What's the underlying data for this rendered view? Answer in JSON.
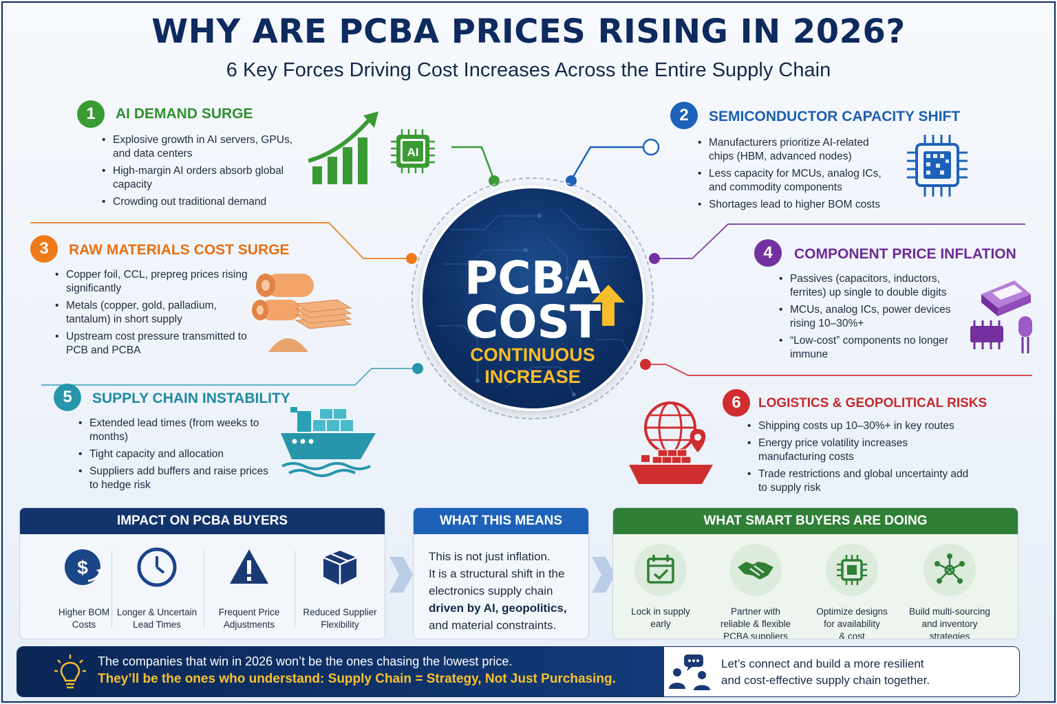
{
  "title": "WHY ARE PCBA PRICES RISING IN 2026?",
  "subtitle": "6 Key Forces Driving Cost Increases Across the Entire Supply Chain",
  "hub": {
    "line1": "PCBA",
    "line2": "COST",
    "line3": "CONTINUOUS",
    "line4": "INCREASE"
  },
  "forces": [
    {
      "num": "1",
      "heading": "AI DEMAND SURGE",
      "color": "#3a9b34",
      "bullets": [
        "Explosive growth in AI servers, GPUs, and data centers",
        "High-margin AI orders absorb global capacity",
        "Crowding out traditional demand"
      ]
    },
    {
      "num": "2",
      "heading": "SEMICONDUCTOR CAPACITY SHIFT",
      "color": "#1d62b8",
      "bullets": [
        "Manufacturers prioritize AI-related chips (HBM, advanced nodes)",
        "Less capacity for MCUs, analog ICs, and commodity components",
        "Shortages lead to higher BOM costs"
      ]
    },
    {
      "num": "3",
      "heading": "RAW MATERIALS COST SURGE",
      "color": "#ef7a1a",
      "bullets": [
        "Copper foil, CCL, prepreg prices rising significantly",
        "Metals (copper, gold, palladium, tantalum) in short supply",
        "Upstream cost pressure transmitted to PCB and PCBA"
      ]
    },
    {
      "num": "4",
      "heading": "COMPONENT PRICE INFLATION",
      "color": "#74309e",
      "bullets": [
        "Passives (capacitors, inductors, ferrites) up single to double digits",
        "MCUs, analog ICs, power devices rising 10–30%+",
        "“Low-cost” components no longer immune"
      ]
    },
    {
      "num": "5",
      "heading": "SUPPLY CHAIN INSTABILITY",
      "color": "#2795ab",
      "bullets": [
        "Extended lead times (from weeks to months)",
        "Tight capacity and allocation",
        "Suppliers add buffers and raise prices to hedge risk"
      ]
    },
    {
      "num": "6",
      "heading": "LOGISTICS & GEOPOLITICAL RISKS",
      "color": "#cf2d2f",
      "bullets": [
        "Shipping costs up 10–30%+ in key routes",
        "Energy price volatility increases manufacturing costs",
        "Trade restrictions and global uncertainty add to supply risk"
      ]
    }
  ],
  "icons": {
    "force1": "growth-chart-ai-chip-icon",
    "force2": "processor-chip-icon",
    "force3": "copper-rolls-icon",
    "force4": "electronic-components-icon",
    "force5": "cargo-ship-icon",
    "force6": "globe-ship-location-icon"
  },
  "impact": {
    "heading": "IMPACT ON PCBA BUYERS",
    "items": [
      {
        "line1": "Higher BOM",
        "line2": "Costs"
      },
      {
        "line1": "Longer & Uncertain",
        "line2": "Lead Times"
      },
      {
        "line1": "Frequent Price",
        "line2": "Adjustments"
      },
      {
        "line1": "Reduced Supplier",
        "line2": "Flexibility"
      }
    ]
  },
  "means": {
    "heading": "WHAT THIS MEANS",
    "line1": "This is not just inflation.",
    "line2": "It is a structural shift in the",
    "line3": "electronics supply chain",
    "line4": "driven by AI, geopolitics,",
    "line5": "and material constraints."
  },
  "smart": {
    "heading": "WHAT SMART BUYERS ARE DOING",
    "items": [
      {
        "line1": "Lock in supply",
        "line2": "early",
        "line3": ""
      },
      {
        "line1": "Partner with",
        "line2": "reliable & flexible",
        "line3": "PCBA suppliers"
      },
      {
        "line1": "Optimize designs",
        "line2": "for availability",
        "line3": "& cost"
      },
      {
        "line1": "Build multi-sourcing",
        "line2": "and inventory",
        "line3": "strategies"
      }
    ]
  },
  "footer": {
    "line1": "The companies that win in 2026 won’t be the ones chasing the lowest price.",
    "line2": "They’ll be the ones who understand: Supply Chain = Strategy, Not Just Purchasing.",
    "right1": "Let’s connect and build a more resilient",
    "right2": "and cost-effective supply chain together."
  },
  "colors": {
    "navy": "#0e2a5e",
    "gold": "#f7bd2a",
    "green": "#3a9b34",
    "blue": "#1d62b8",
    "orange": "#ef7a1a",
    "purple": "#74309e",
    "teal": "#2795ab",
    "red": "#cf2d2f"
  }
}
